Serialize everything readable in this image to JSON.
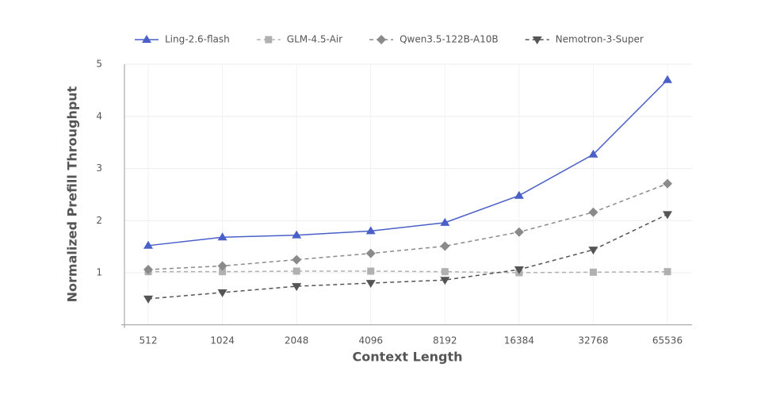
{
  "chart_data": {
    "type": "line",
    "x_label": "Context Length",
    "y_label": "Normalized Prefill Throughput",
    "categories": [
      "512",
      "1024",
      "2048",
      "4096",
      "8192",
      "16384",
      "32768",
      "65536"
    ],
    "series": [
      {
        "name": "Ling-2.6-flash",
        "color": "#4a5fc8",
        "marker": "triangle-up",
        "dashed": false,
        "values": [
          1.52,
          1.68,
          1.72,
          1.8,
          1.96,
          2.48,
          3.27,
          4.7
        ]
      },
      {
        "name": "GLM-4.5-Air",
        "color": "#b0b0b0",
        "marker": "square",
        "dashed": true,
        "values": [
          1.02,
          1.02,
          1.03,
          1.03,
          1.02,
          1.0,
          1.01,
          1.02
        ]
      },
      {
        "name": "Qwen3.5-122B-A10B",
        "color": "#8a8a8a",
        "marker": "diamond",
        "dashed": true,
        "values": [
          1.06,
          1.13,
          1.25,
          1.37,
          1.51,
          1.78,
          2.16,
          2.71
        ]
      },
      {
        "name": "Nemotron-3-Super",
        "color": "#555555",
        "marker": "triangle-down",
        "dashed": true,
        "values": [
          0.5,
          0.62,
          0.74,
          0.8,
          0.86,
          1.06,
          1.44,
          2.12
        ]
      }
    ],
    "ylim": [
      0,
      5
    ],
    "yticks": [
      1,
      2,
      3,
      4,
      5
    ],
    "grid": true,
    "legend": "top"
  }
}
